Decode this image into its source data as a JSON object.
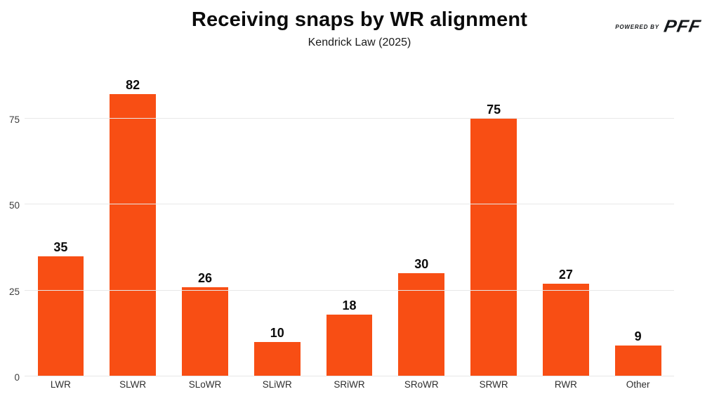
{
  "header": {
    "title": "Receiving snaps by WR alignment",
    "subtitle": "Kendrick Law (2025)",
    "powered_by_label": "POWERED BY",
    "brand_name": "PFF"
  },
  "chart_data": {
    "type": "bar",
    "title": "Receiving snaps by WR alignment",
    "subtitle": "Kendrick Law (2025)",
    "categories": [
      "LWR",
      "SLWR",
      "SLoWR",
      "SLiWR",
      "SRiWR",
      "SRoWR",
      "SRWR",
      "RWR",
      "Other"
    ],
    "values": [
      35,
      82,
      26,
      10,
      18,
      30,
      75,
      27,
      9
    ],
    "xlabel": "",
    "ylabel": "",
    "yticks": [
      0,
      25,
      50,
      75
    ],
    "ylim": [
      0,
      89
    ],
    "grid": true,
    "legend": "none",
    "colors": {
      "bar": "#F84E14",
      "grid_line": "#E8E8E8",
      "value_label": "#0C0C0C",
      "axis_text": "#3D3D3D",
      "title_text": "#0B0B0B",
      "brand_text": "#15181B",
      "background": "#FFFFFF"
    }
  }
}
